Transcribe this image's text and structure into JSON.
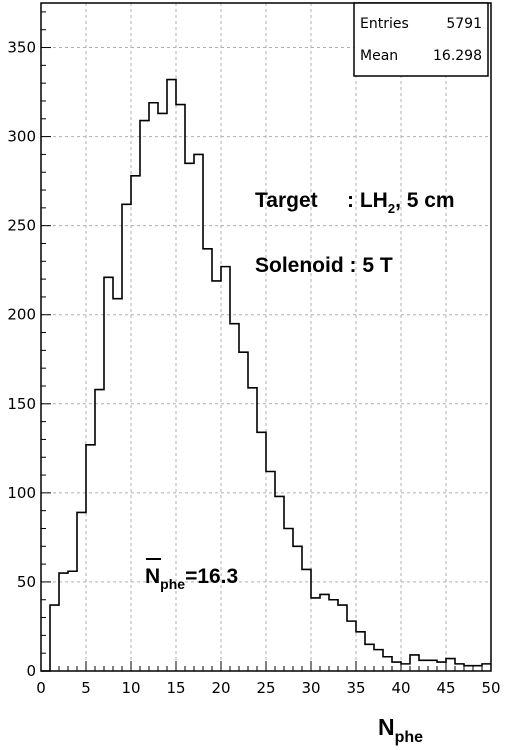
{
  "chart_data": {
    "type": "histogram",
    "title": "",
    "xlabel": "N",
    "xlabel_sub": "phe",
    "ylabel": "",
    "xlim": [
      0,
      50
    ],
    "ylim": [
      0,
      375
    ],
    "grid": true,
    "x_ticks": [
      "0",
      "5",
      "10",
      "15",
      "20",
      "25",
      "30",
      "35",
      "40",
      "45",
      "50"
    ],
    "y_ticks": [
      "0",
      "50",
      "100",
      "150",
      "200",
      "250",
      "300",
      "350"
    ],
    "bin_width": 1,
    "bin_start": 0,
    "values": [
      0,
      37,
      55,
      56,
      89,
      127,
      158,
      221,
      209,
      262,
      278,
      309,
      319,
      313,
      332,
      318,
      285,
      290,
      237,
      219,
      227,
      195,
      179,
      159,
      134,
      112,
      98,
      80,
      70,
      57,
      41,
      43,
      40,
      37,
      28,
      22,
      15,
      12,
      8,
      5,
      4,
      9,
      6,
      6,
      5,
      7,
      4,
      3,
      3,
      4
    ],
    "stats_box": {
      "entries_label": "Entries",
      "entries_value": "5791",
      "mean_label": "Mean",
      "mean_value": "16.298"
    },
    "annotations": {
      "target_label": "Target",
      "target_value_prefix": ": LH",
      "target_value_sub": "2",
      "target_value_suffix": ", 5 cm",
      "solenoid": "Solenoid : 5 T",
      "mean_symbol": "N",
      "mean_symbol_sub": "phe",
      "mean_value": "=16.3"
    },
    "line_color": "#000000",
    "grid_color": "#b0b0b0"
  }
}
